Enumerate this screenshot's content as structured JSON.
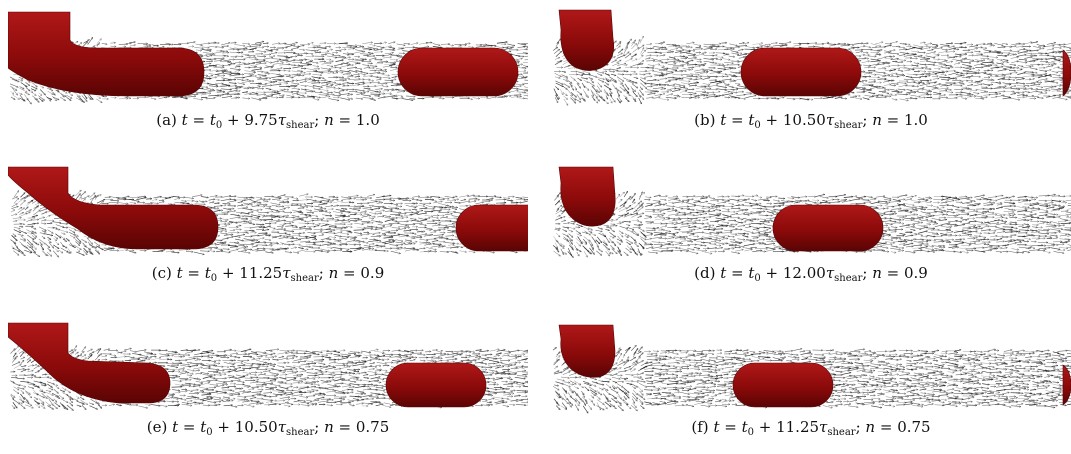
{
  "panels": [
    {
      "id": "a",
      "label": "(a)",
      "time": "9.75",
      "n": "1.0"
    },
    {
      "id": "b",
      "label": "(b)",
      "time": "10.50",
      "n": "1.0"
    },
    {
      "id": "c",
      "label": "(c)",
      "time": "11.25",
      "n": "0.9"
    },
    {
      "id": "d",
      "label": "(d)",
      "time": "12.00",
      "n": "0.9"
    },
    {
      "id": "e",
      "label": "(e)",
      "time": "10.50",
      "n": "0.75"
    },
    {
      "id": "f",
      "label": "(f)",
      "time": "11.25",
      "n": "0.75"
    }
  ],
  "symbols": {
    "t": "t",
    "t0": "t",
    "t0_sub": "0",
    "tau": "τ",
    "tau_sub": "shear",
    "n": "n"
  },
  "colors": {
    "droplet": "#8b0a0a",
    "droplet_highlight": "#b01818",
    "droplet_shadow": "#5a0404",
    "arrow": "#1a1a1a"
  }
}
